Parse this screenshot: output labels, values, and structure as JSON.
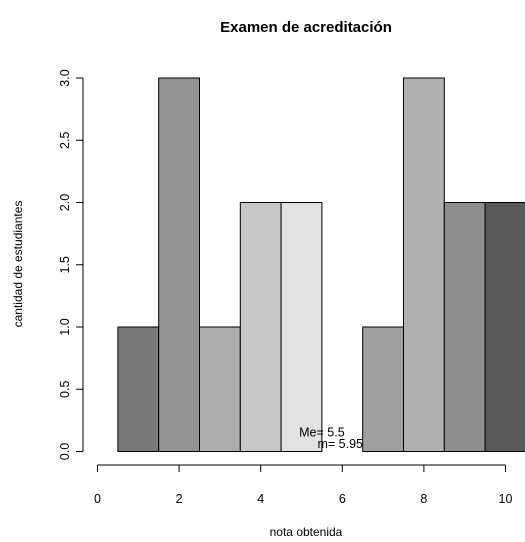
{
  "chart_data": {
    "type": "bar",
    "title": "Examen de acreditación",
    "xlabel": "nota obtenida",
    "ylabel": "cantidad de estudiantes",
    "categories": [
      1,
      2,
      3,
      4,
      5,
      6,
      7,
      8,
      9,
      10
    ],
    "values": [
      1,
      3,
      1,
      2,
      2,
      0,
      1,
      3,
      2,
      2
    ],
    "bar_colors": [
      "#7a7a7a",
      "#949494",
      "#adadad",
      "#c8c8c8",
      "#e2e2e2",
      "#ffffff",
      "#a0a0a0",
      "#b0b0b0",
      "#8e8e8e",
      "#595959"
    ],
    "xlim": [
      0,
      10.5
    ],
    "ylim": [
      0,
      3
    ],
    "x_ticks": [
      0,
      2,
      4,
      6,
      8,
      10
    ],
    "y_ticks": [
      0.0,
      0.5,
      1.0,
      1.5,
      2.0,
      2.5,
      3.0
    ],
    "x_tick_labels": [
      "0",
      "2",
      "4",
      "6",
      "8",
      "10"
    ],
    "y_tick_labels": [
      "0.0",
      "0.5",
      "1.0",
      "1.5",
      "2.0",
      "2.5",
      "3.0"
    ],
    "grid": false,
    "annotations": [
      {
        "text": "Me= 5.5",
        "x": 5.5,
        "y": 0.12
      },
      {
        "text": "m= 5.95",
        "x": 5.95,
        "y": 0.03
      }
    ]
  }
}
